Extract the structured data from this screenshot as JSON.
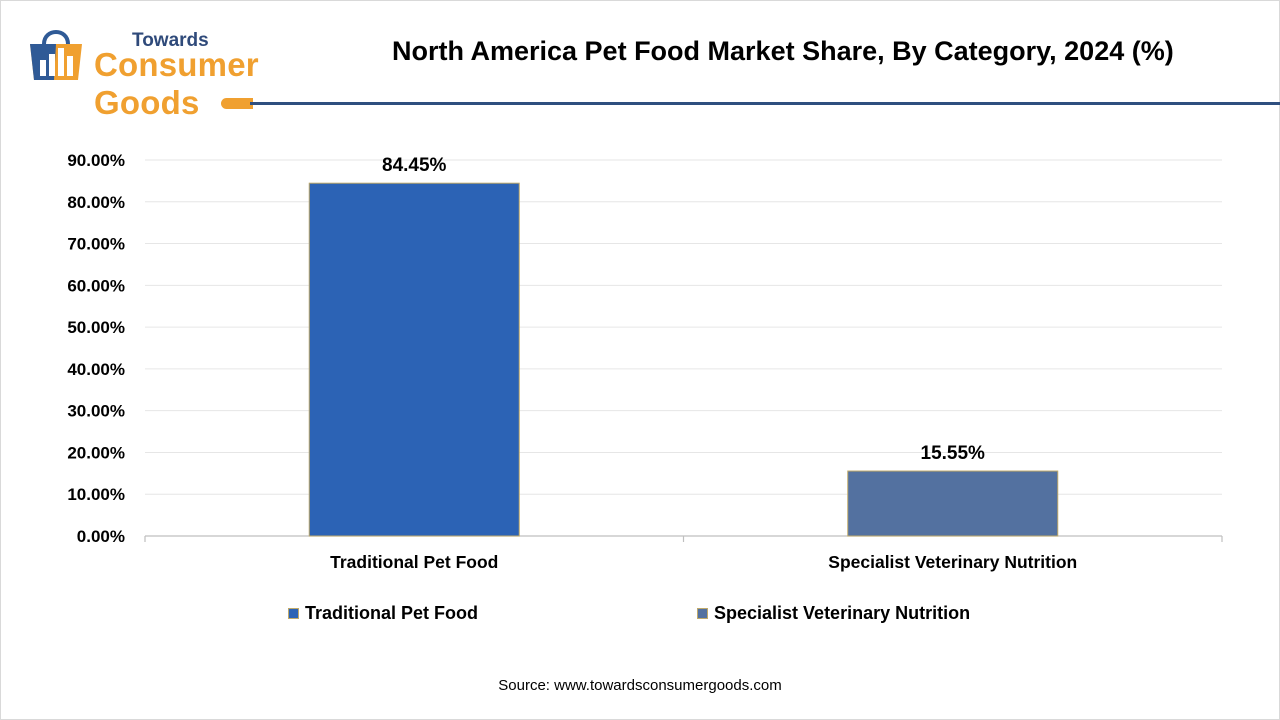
{
  "brand": {
    "line1": "Towards",
    "line2": "Consumer Goods"
  },
  "header": {
    "title": "North America Pet Food Market Share, By Category, 2024 (%)"
  },
  "chart_data": {
    "type": "bar",
    "title": "North America Pet Food Market Share, By Category, 2024 (%)",
    "categories": [
      "Traditional Pet Food",
      "Specialist Veterinary Nutrition"
    ],
    "values": [
      84.45,
      15.55
    ],
    "data_labels": [
      "84.45%",
      "15.55%"
    ],
    "bar_colors": [
      "#2c63b5",
      "#5371a0"
    ],
    "ylim": [
      0,
      90
    ],
    "yticks": [
      0,
      10,
      20,
      30,
      40,
      50,
      60,
      70,
      80,
      90
    ],
    "ytick_labels": [
      "0.00%",
      "10.00%",
      "20.00%",
      "30.00%",
      "40.00%",
      "50.00%",
      "60.00%",
      "70.00%",
      "80.00%",
      "90.00%"
    ],
    "grid": true,
    "legend_placement": "bottom",
    "legend": [
      "Traditional Pet Food",
      "Specialist Veterinary Nutrition"
    ]
  },
  "source": "Source: www.towardsconsumergoods.com",
  "colors": {
    "brand_orange": "#f0a030",
    "brand_navy": "#2f4f7f"
  }
}
